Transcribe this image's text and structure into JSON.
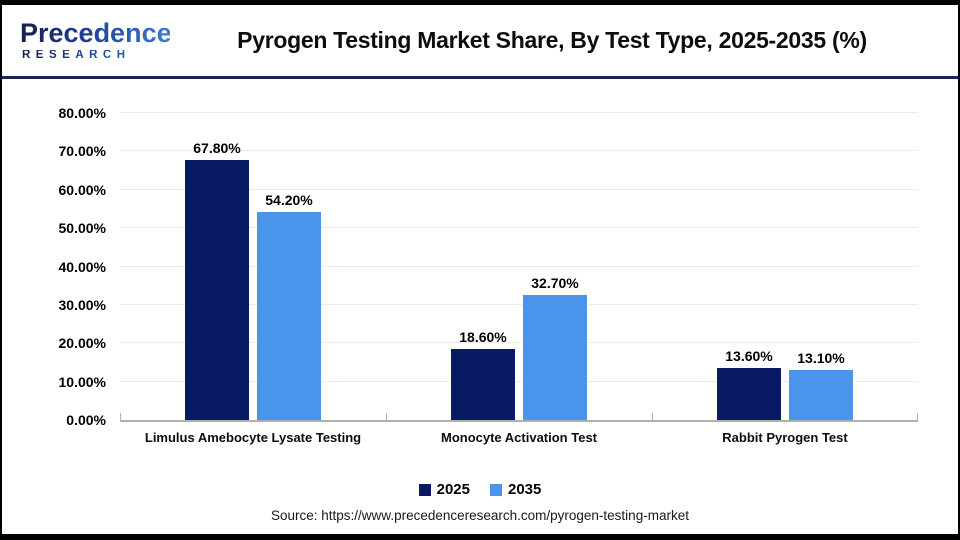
{
  "header": {
    "logo": {
      "line1": "Precedence",
      "line2": "RESEARCH"
    },
    "title": "Pyrogen Testing Market Share, By Test Type, 2025-2035 (%)"
  },
  "chart_data": {
    "type": "bar",
    "title": "Pyrogen Testing Market Share, By Test Type, 2025-2035 (%)",
    "categories": [
      "Limulus Amebocyte Lysate Testing",
      "Monocyte Activation Test",
      "Rabbit Pyrogen Test"
    ],
    "series": [
      {
        "name": "2025",
        "color": "#081a63",
        "values": [
          67.8,
          18.6,
          13.6
        ]
      },
      {
        "name": "2035",
        "color": "#4a94ec",
        "values": [
          54.2,
          32.7,
          13.1
        ]
      }
    ],
    "xlabel": "",
    "ylabel": "",
    "ylim": [
      0,
      80
    ],
    "ytick_step": 10,
    "ytick_format": "0.00%",
    "value_label_format": "0.00%",
    "grid": true,
    "gridline_color": "#ececec",
    "axis_color": "#b0b0b0",
    "legend_position": "bottom"
  },
  "footer": {
    "source": "Source: https://www.precedenceresearch.com/pyrogen-testing-market"
  }
}
